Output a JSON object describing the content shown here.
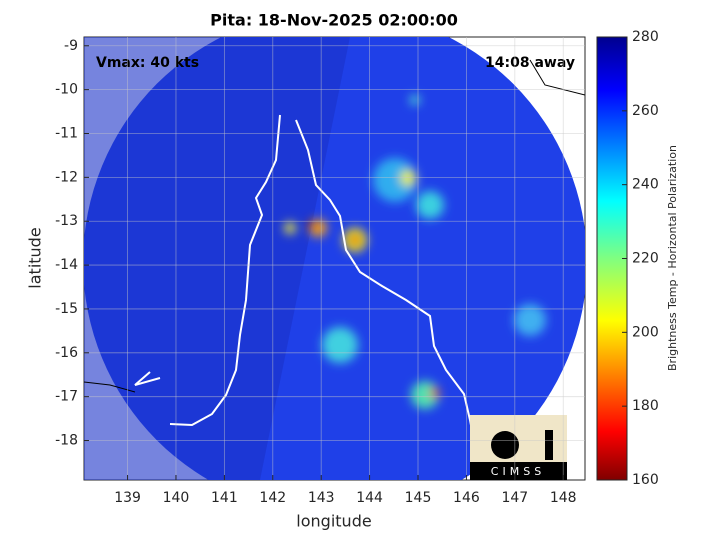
{
  "map": {
    "title": "Pita: 18-Nov-2025 02:00:00",
    "xlabel": "longitude",
    "ylabel": "latitude",
    "xlim": [
      138.1,
      148.45
    ],
    "ylim": [
      -18.9,
      -8.8
    ],
    "xticks": [
      139,
      140,
      141,
      142,
      143,
      144,
      145,
      146,
      147,
      148
    ],
    "yticks": [
      -18,
      -17,
      -16,
      -15,
      -14,
      -13,
      -12,
      -11,
      -10,
      -9
    ],
    "grid": true,
    "annotations": {
      "vmax": "Vmax: 40 kts",
      "time_away": "14:08 away"
    }
  },
  "colorbar": {
    "label": "Brightness Temp - Horizontal Polarization",
    "lim": [
      160,
      280
    ],
    "ticks": [
      160,
      180,
      200,
      220,
      240,
      260,
      280
    ]
  },
  "logo": "CIMSS"
}
